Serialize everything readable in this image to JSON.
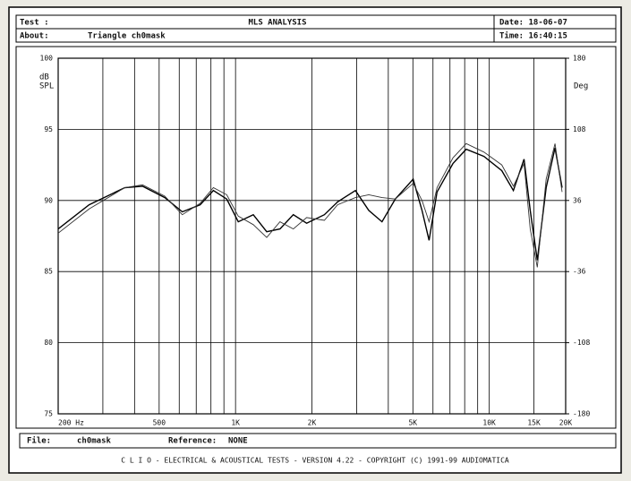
{
  "header": {
    "test_label": "Test :",
    "title": "MLS ANALYSIS",
    "date": "Date: 18-06-07",
    "about_label": "About:",
    "about": "Triangle ch0mask",
    "time": "Time: 16:40:15"
  },
  "footer": {
    "file_label": "File:",
    "file": "ch0mask",
    "reference_label": "Reference:",
    "reference": "NONE",
    "credits": "C L I O  -  ELECTRICAL & ACOUSTICAL TESTS  -  VERSION 4.22  -  COPYRIGHT (C) 1991-99 AUDIOMATICA"
  },
  "chart_data": {
    "type": "line",
    "log_x": true,
    "grid": true,
    "ylabel": [
      "dB",
      "SPL"
    ],
    "y2label": "Deg",
    "xlim": [
      200,
      20000
    ],
    "xticks": [
      {
        "value": 200,
        "label": "200 Hz"
      },
      500,
      {
        "value": 1000,
        "label": "1K"
      },
      {
        "value": 2000,
        "label": "2K"
      },
      {
        "value": 5000,
        "label": "5K"
      },
      {
        "value": 10000,
        "label": "10K"
      },
      {
        "value": 15000,
        "label": "15K"
      },
      {
        "value": 20000,
        "label": "20K"
      }
    ],
    "xgrid": [
      300,
      400,
      600,
      700,
      800,
      900,
      3000,
      4000,
      6000,
      7000,
      8000,
      9000
    ],
    "ylim": [
      75,
      100
    ],
    "yticks": [
      75,
      80,
      85,
      90,
      95,
      100
    ],
    "y2lim": [
      -180,
      180
    ],
    "y2ticks": [
      -180,
      -108,
      -36,
      36,
      108,
      180
    ],
    "x": [
      200,
      265,
      366,
      430,
      526,
      617,
      725,
      818,
      923,
      1025,
      1175,
      1327,
      1497,
      1689,
      1906,
      2239,
      2525,
      2967,
      3349,
      3778,
      4264,
      5012,
      5431,
      5793,
      6224,
      7194,
      8110,
      9528,
      11196,
      12442,
      13707,
      14496,
      15455,
      16749,
      18151,
      19360
    ],
    "series": [
      {
        "color": "#000000",
        "values": [
          88.0,
          89.7,
          90.9,
          91.0,
          90.2,
          89.2,
          89.7,
          90.7,
          90.1,
          88.5,
          89.0,
          87.8,
          88.0,
          89.0,
          88.4,
          89.0,
          89.9,
          90.7,
          89.3,
          88.5,
          90.1,
          91.5,
          89.3,
          87.2,
          90.6,
          92.6,
          93.6,
          93.1,
          92.1,
          90.7,
          92.9,
          89.3,
          85.8,
          90.9,
          93.7,
          90.9
        ]
      },
      {
        "color": "#333333",
        "values": [
          87.7,
          89.4,
          90.9,
          91.1,
          90.3,
          89.0,
          89.8,
          90.9,
          90.4,
          88.9,
          88.3,
          87.4,
          88.5,
          88.0,
          88.8,
          88.6,
          89.7,
          90.2,
          90.4,
          90.2,
          90.1,
          91.2,
          90.0,
          88.5,
          90.9,
          93.0,
          94.0,
          93.4,
          92.5,
          91.0,
          92.6,
          88.0,
          85.3,
          91.5,
          94.0,
          90.6
        ]
      }
    ]
  }
}
